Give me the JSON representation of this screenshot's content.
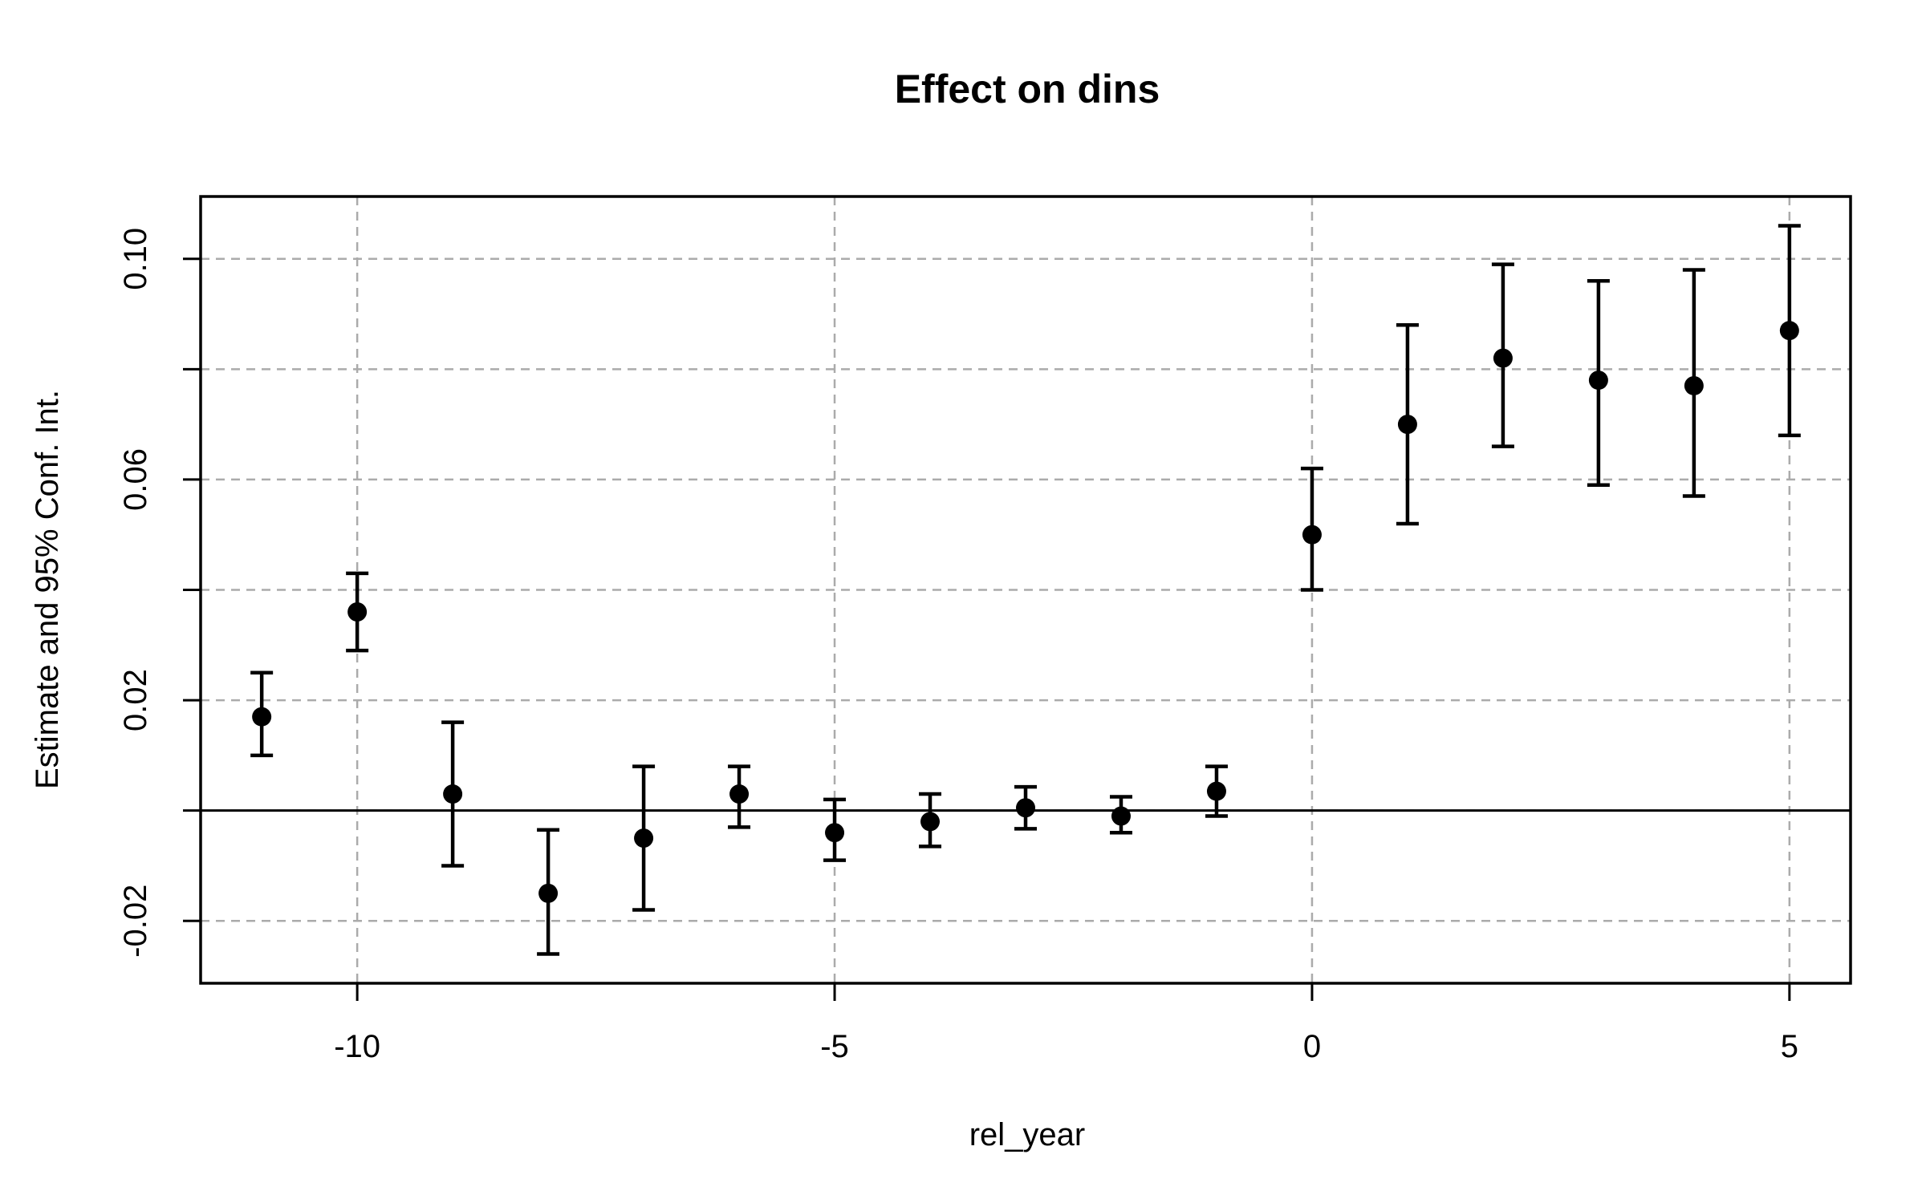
{
  "chart_data": {
    "type": "scatter",
    "subtype": "errorbar-event-study",
    "title": "Effect on dins",
    "xlabel": "rel_year",
    "ylabel": "Estimate and 95% Conf. Int.",
    "xlim": [
      -11.64,
      5.64
    ],
    "ylim": [
      -0.0313,
      0.1113
    ],
    "x_ticks": [
      {
        "value": -10,
        "label": "-10"
      },
      {
        "value": -5,
        "label": "-5"
      },
      {
        "value": 0,
        "label": "0"
      },
      {
        "value": 5,
        "label": "5"
      }
    ],
    "y_ticks": [
      {
        "value": -0.02,
        "label": "-0.02"
      },
      {
        "value": 0.0,
        "label": ""
      },
      {
        "value": 0.02,
        "label": "0.02"
      },
      {
        "value": 0.04,
        "label": ""
      },
      {
        "value": 0.06,
        "label": "0.06"
      },
      {
        "value": 0.08,
        "label": ""
      },
      {
        "value": 0.1,
        "label": "0.10"
      }
    ],
    "grid": true,
    "grid_style": "dashed",
    "legend": "none",
    "zero_line": true,
    "points": [
      {
        "x": -11,
        "estimate": 0.017,
        "ci_low": 0.01,
        "ci_high": 0.025
      },
      {
        "x": -10,
        "estimate": 0.036,
        "ci_low": 0.029,
        "ci_high": 0.043
      },
      {
        "x": -9,
        "estimate": 0.003,
        "ci_low": -0.01,
        "ci_high": 0.016
      },
      {
        "x": -8,
        "estimate": -0.015,
        "ci_low": -0.026,
        "ci_high": -0.0035
      },
      {
        "x": -7,
        "estimate": -0.005,
        "ci_low": -0.018,
        "ci_high": 0.008
      },
      {
        "x": -6,
        "estimate": 0.003,
        "ci_low": -0.003,
        "ci_high": 0.008
      },
      {
        "x": -5,
        "estimate": -0.004,
        "ci_low": -0.009,
        "ci_high": 0.002
      },
      {
        "x": -4,
        "estimate": -0.002,
        "ci_low": -0.0065,
        "ci_high": 0.003
      },
      {
        "x": -3,
        "estimate": 0.0005,
        "ci_low": -0.0033,
        "ci_high": 0.0043
      },
      {
        "x": -2,
        "estimate": -0.001,
        "ci_low": -0.004,
        "ci_high": 0.0025
      },
      {
        "x": -1,
        "estimate": 0.0035,
        "ci_low": -0.001,
        "ci_high": 0.008
      },
      {
        "x": 0,
        "estimate": 0.05,
        "ci_low": 0.04,
        "ci_high": 0.062
      },
      {
        "x": 1,
        "estimate": 0.07,
        "ci_low": 0.052,
        "ci_high": 0.088
      },
      {
        "x": 2,
        "estimate": 0.082,
        "ci_low": 0.066,
        "ci_high": 0.099
      },
      {
        "x": 3,
        "estimate": 0.078,
        "ci_low": 0.059,
        "ci_high": 0.096
      },
      {
        "x": 4,
        "estimate": 0.077,
        "ci_low": 0.057,
        "ci_high": 0.098
      },
      {
        "x": 5,
        "estimate": 0.087,
        "ci_low": 0.068,
        "ci_high": 0.106
      }
    ],
    "colors": {
      "point": "#000000",
      "error_bar": "#000000",
      "grid": "#ababab",
      "axis": "#000000",
      "background": "#ffffff"
    }
  }
}
